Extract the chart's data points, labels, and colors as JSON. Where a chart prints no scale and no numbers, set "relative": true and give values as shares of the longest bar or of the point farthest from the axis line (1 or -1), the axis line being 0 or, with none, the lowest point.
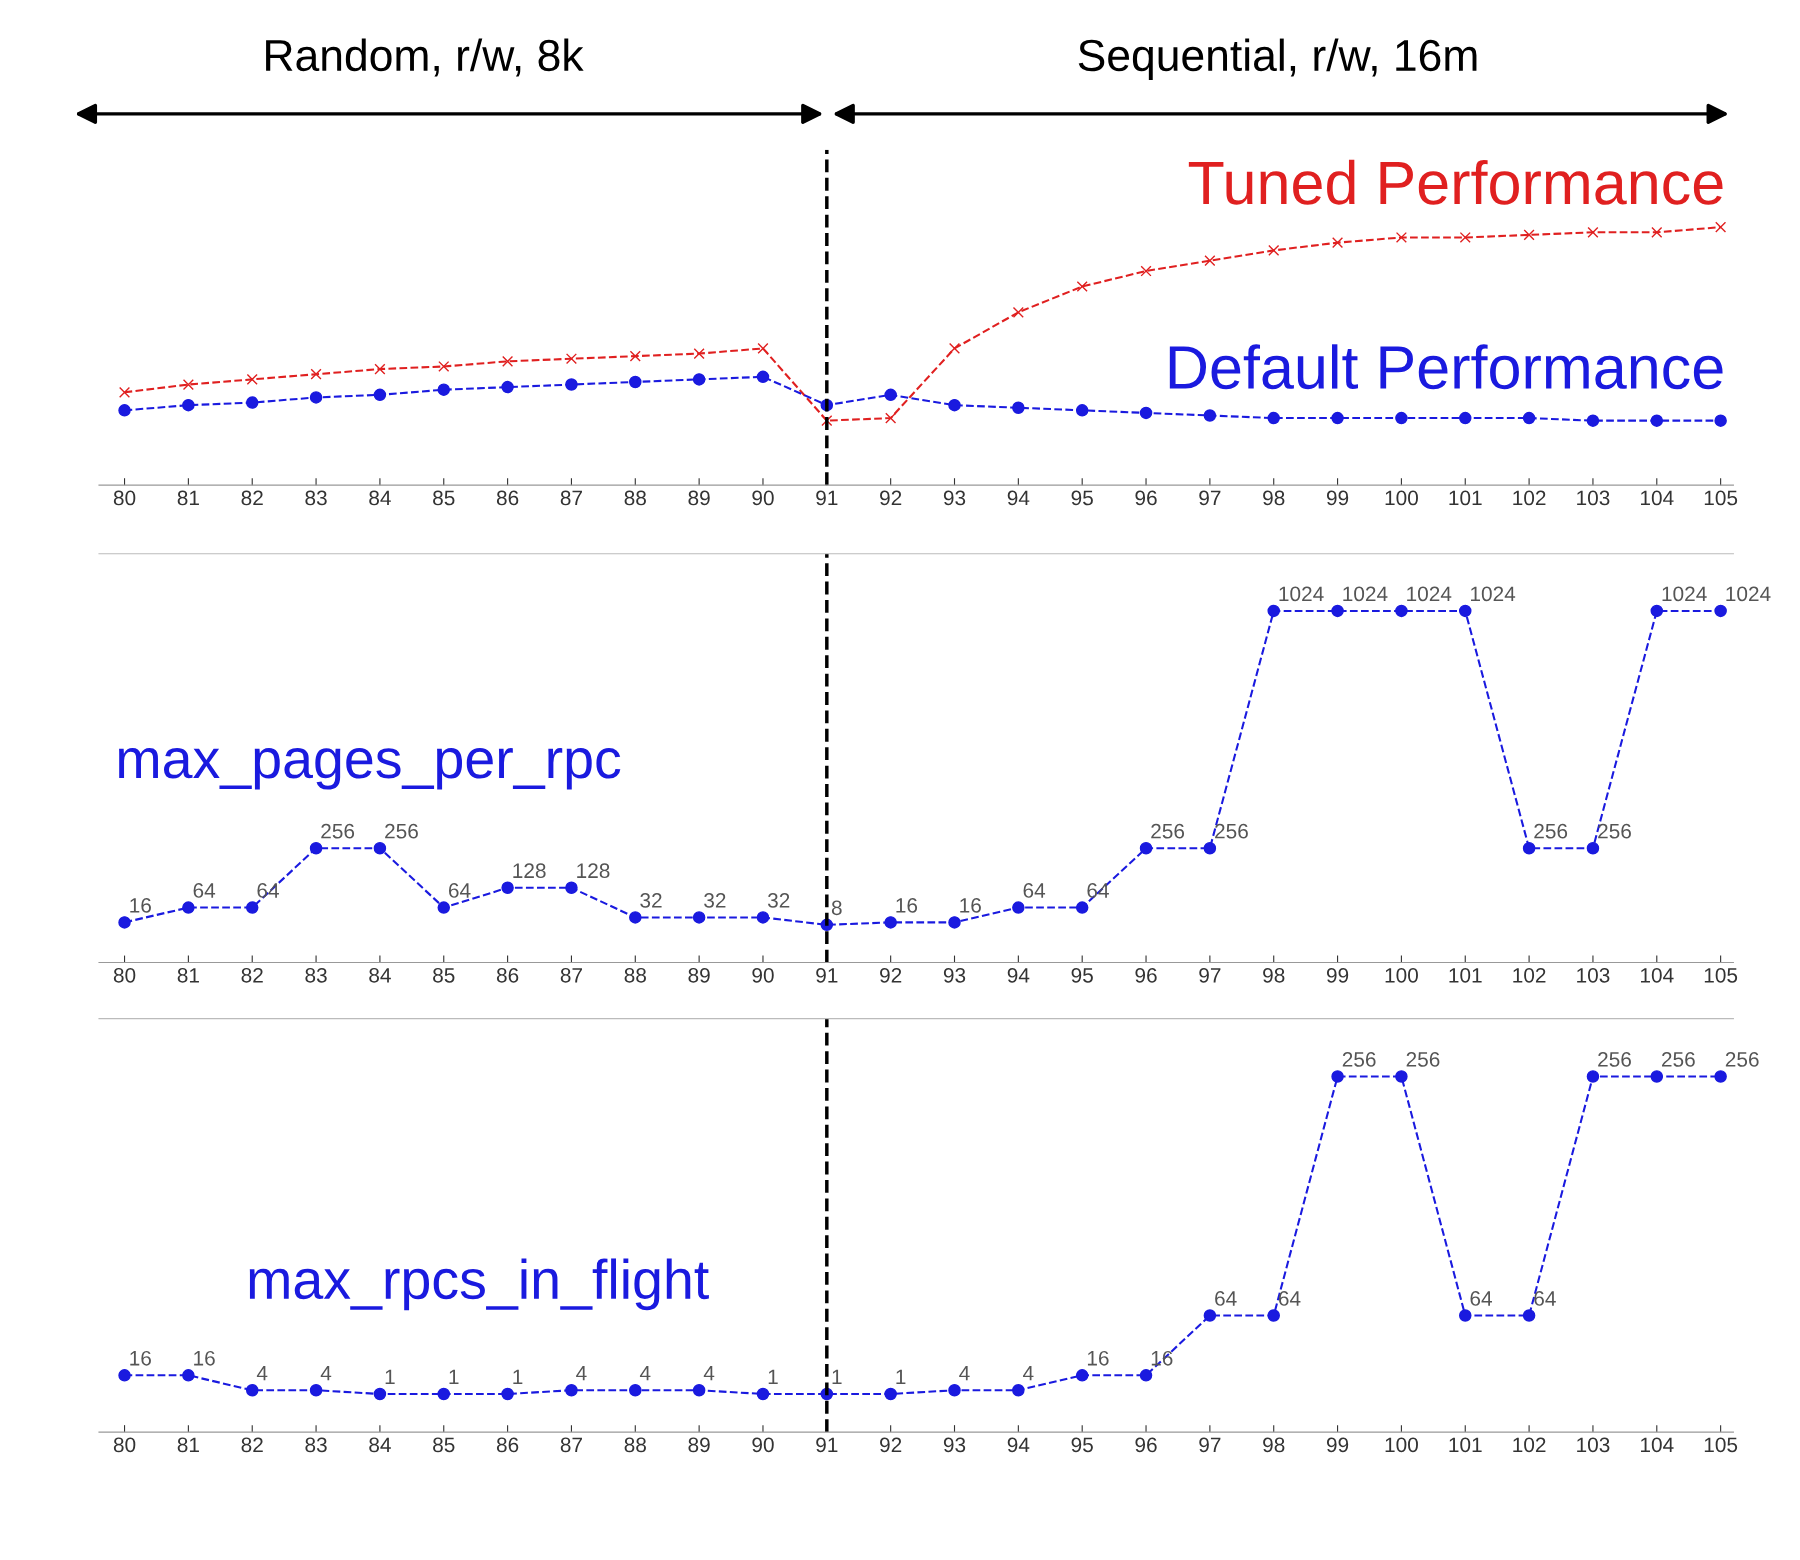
{
  "chart_data": [
    {
      "type": "line",
      "relative": true,
      "x": [
        80,
        81,
        82,
        83,
        84,
        85,
        86,
        87,
        88,
        89,
        90,
        91,
        92,
        93,
        94,
        95,
        96,
        97,
        98,
        99,
        100,
        101,
        102,
        103,
        104,
        105
      ],
      "xlim": [
        79.6,
        105.2
      ],
      "xticks": [
        80,
        81,
        82,
        83,
        84,
        85,
        86,
        87,
        88,
        89,
        90,
        91,
        92,
        93,
        94,
        95,
        96,
        97,
        98,
        99,
        100,
        101,
        102,
        103,
        104,
        105
      ],
      "tick_labels": "x",
      "grid": false,
      "line_style": "dashed",
      "annotations": [
        "Random, r/w, 8k",
        "Sequential, r/w, 16m"
      ],
      "ref_lines": [
        {
          "axis": "x",
          "value": 91,
          "color": "#000000",
          "line_style": "dashed"
        }
      ],
      "series": [
        {
          "name": "Tuned Performance",
          "color": "#e02020",
          "marker": "cross",
          "values": [
            0.36,
            0.39,
            0.41,
            0.43,
            0.45,
            0.46,
            0.48,
            0.49,
            0.5,
            0.51,
            0.53,
            0.25,
            0.26,
            0.53,
            0.67,
            0.77,
            0.83,
            0.87,
            0.91,
            0.94,
            0.96,
            0.96,
            0.97,
            0.98,
            0.98,
            1.0
          ]
        },
        {
          "name": "Default Performance",
          "color": "#1a1adf",
          "marker": "circle",
          "values": [
            0.29,
            0.31,
            0.32,
            0.34,
            0.35,
            0.37,
            0.38,
            0.39,
            0.4,
            0.41,
            0.42,
            0.31,
            0.35,
            0.31,
            0.3,
            0.29,
            0.28,
            0.27,
            0.26,
            0.26,
            0.26,
            0.26,
            0.26,
            0.25,
            0.25,
            0.25
          ]
        }
      ]
    },
    {
      "type": "line",
      "data_labels": true,
      "x": [
        80,
        81,
        82,
        83,
        84,
        85,
        86,
        87,
        88,
        89,
        90,
        91,
        92,
        93,
        94,
        95,
        96,
        97,
        98,
        99,
        100,
        101,
        102,
        103,
        104,
        105
      ],
      "xlim": [
        79.6,
        105.2
      ],
      "xticks": [
        80,
        81,
        82,
        83,
        84,
        85,
        86,
        87,
        88,
        89,
        90,
        91,
        92,
        93,
        94,
        95,
        96,
        97,
        98,
        99,
        100,
        101,
        102,
        103,
        104,
        105
      ],
      "tick_labels": "x",
      "grid": false,
      "line_style": "dashed",
      "marker": "circle",
      "ref_lines": [
        {
          "axis": "x",
          "value": 91,
          "color": "#000000",
          "line_style": "dashed"
        }
      ],
      "series": [
        {
          "name": "max_pages_per_rpc",
          "color": "#1a1adf",
          "values": [
            16,
            64,
            64,
            256,
            256,
            64,
            128,
            128,
            32,
            32,
            32,
            8,
            16,
            16,
            64,
            64,
            256,
            256,
            1024,
            1024,
            1024,
            1024,
            256,
            256,
            1024,
            1024
          ]
        }
      ]
    },
    {
      "type": "line",
      "data_labels": true,
      "x": [
        80,
        81,
        82,
        83,
        84,
        85,
        86,
        87,
        88,
        89,
        90,
        91,
        92,
        93,
        94,
        95,
        96,
        97,
        98,
        99,
        100,
        101,
        102,
        103,
        104,
        105
      ],
      "xlim": [
        79.6,
        105.2
      ],
      "xticks": [
        80,
        81,
        82,
        83,
        84,
        85,
        86,
        87,
        88,
        89,
        90,
        91,
        92,
        93,
        94,
        95,
        96,
        97,
        98,
        99,
        100,
        101,
        102,
        103,
        104,
        105
      ],
      "tick_labels": "x",
      "grid": false,
      "line_style": "dashed",
      "marker": "circle",
      "ref_lines": [
        {
          "axis": "x",
          "value": 91,
          "color": "#000000",
          "line_style": "dashed"
        }
      ],
      "series": [
        {
          "name": "max_rpcs_in_flight",
          "color": "#1a1adf",
          "values": [
            16,
            16,
            4,
            4,
            1,
            1,
            1,
            4,
            4,
            4,
            1,
            1,
            1,
            4,
            4,
            16,
            16,
            64,
            64,
            256,
            256,
            64,
            64,
            256,
            256,
            256
          ]
        }
      ]
    }
  ]
}
